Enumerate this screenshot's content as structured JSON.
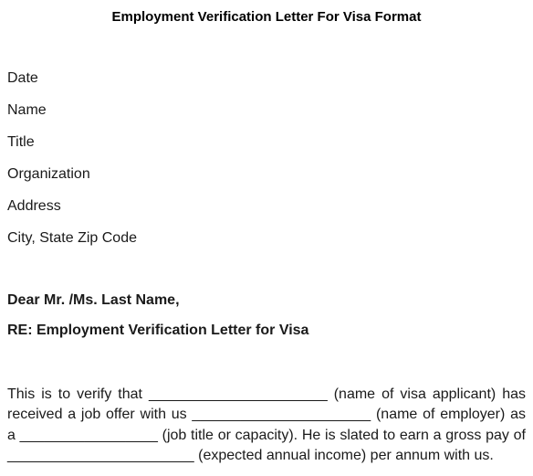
{
  "title": "Employment Verification Letter For Visa Format",
  "fields": {
    "date": "Date",
    "name": "Name",
    "jobTitle": "Title",
    "organization": "Organization",
    "address": "Address",
    "cityStateZip": "City, State Zip Code"
  },
  "salutation": "Dear Mr. /Ms. Last Name,",
  "subject": "RE: Employment Verification Letter for Visa",
  "body": "This is to verify that ______________________ (name of visa applicant) has received a job offer with us ______________________ (name of employer) as a _________________ (job title or capacity). He is slated to earn a gross pay of _______________________ (expected annual income) per annum with us."
}
